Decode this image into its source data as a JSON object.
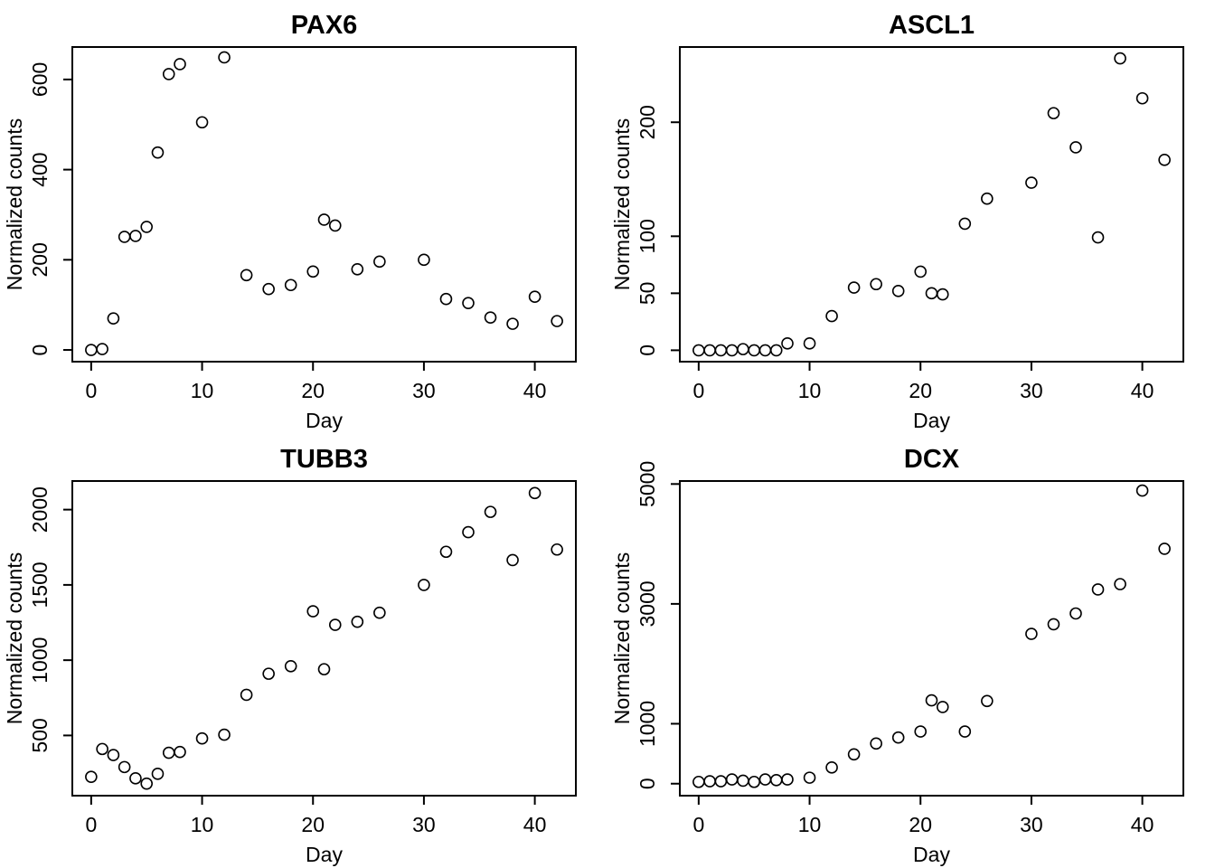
{
  "chart_data": [
    {
      "type": "scatter",
      "title": "PAX6",
      "xlabel": "Day",
      "ylabel": "Normalized counts",
      "xlim": [
        -1.7,
        43.7
      ],
      "ylim": [
        -26,
        672
      ],
      "xticks": [
        0,
        10,
        20,
        30,
        40
      ],
      "yticks": [
        0,
        200,
        400,
        600
      ],
      "x": [
        0,
        1,
        2,
        3,
        4,
        5,
        6,
        7,
        8,
        10,
        12,
        14,
        16,
        18,
        20,
        21,
        22,
        24,
        26,
        30,
        32,
        34,
        36,
        38,
        40,
        42
      ],
      "y": [
        0,
        2,
        70,
        251,
        253,
        273,
        438,
        612,
        634,
        505,
        649,
        166,
        135,
        144,
        174,
        289,
        276,
        179,
        196,
        200,
        113,
        104,
        72,
        58,
        118,
        64
      ]
    },
    {
      "type": "scatter",
      "title": "ASCL1",
      "xlabel": "Day",
      "ylabel": "Normalized counts",
      "xlim": [
        -1.7,
        43.7
      ],
      "ylim": [
        -10,
        266
      ],
      "xticks": [
        0,
        10,
        20,
        30,
        40
      ],
      "yticks": [
        0,
        50,
        100,
        200
      ],
      "ytick_labels": [
        "0",
        "50",
        "100",
        "200"
      ],
      "x": [
        0,
        1,
        2,
        3,
        4,
        5,
        6,
        7,
        8,
        10,
        12,
        14,
        16,
        18,
        20,
        21,
        22,
        24,
        26,
        30,
        32,
        34,
        36,
        38,
        40,
        42
      ],
      "y": [
        0,
        0,
        0,
        0,
        1,
        0,
        0,
        0,
        6,
        6,
        30,
        55,
        58,
        52,
        69,
        50,
        49,
        111,
        133,
        147,
        208,
        178,
        99,
        256,
        221,
        167
      ]
    },
    {
      "type": "scatter",
      "title": "TUBB3",
      "xlabel": "Day",
      "ylabel": "Normalized counts",
      "xlim": [
        -1.7,
        43.7
      ],
      "ylim": [
        100,
        2190
      ],
      "xticks": [
        0,
        10,
        20,
        30,
        40
      ],
      "yticks": [
        500,
        1000,
        1500,
        2000
      ],
      "x": [
        0,
        1,
        2,
        3,
        4,
        5,
        6,
        7,
        8,
        10,
        12,
        14,
        16,
        18,
        20,
        21,
        22,
        24,
        26,
        30,
        32,
        34,
        36,
        38,
        40,
        42
      ],
      "y": [
        225,
        410,
        370,
        290,
        215,
        180,
        245,
        385,
        390,
        480,
        505,
        770,
        910,
        960,
        1325,
        940,
        1235,
        1255,
        1315,
        1500,
        1720,
        1850,
        1985,
        1665,
        2110,
        1735
      ]
    },
    {
      "type": "scatter",
      "title": "DCX",
      "xlabel": "Day",
      "ylabel": "Normalized counts",
      "xlim": [
        -1.7,
        43.7
      ],
      "ylim": [
        -200,
        5050
      ],
      "xticks": [
        0,
        10,
        20,
        30,
        40
      ],
      "yticks": [
        0,
        1000,
        3000,
        5000
      ],
      "x": [
        0,
        1,
        2,
        3,
        4,
        5,
        6,
        7,
        8,
        10,
        12,
        14,
        16,
        18,
        20,
        21,
        22,
        24,
        26,
        30,
        32,
        34,
        36,
        38,
        40,
        42
      ],
      "y": [
        30,
        40,
        40,
        70,
        50,
        30,
        70,
        60,
        70,
        100,
        270,
        490,
        670,
        770,
        870,
        1390,
        1280,
        870,
        1380,
        2500,
        2660,
        2840,
        3240,
        3330,
        4890,
        3920
      ]
    }
  ]
}
